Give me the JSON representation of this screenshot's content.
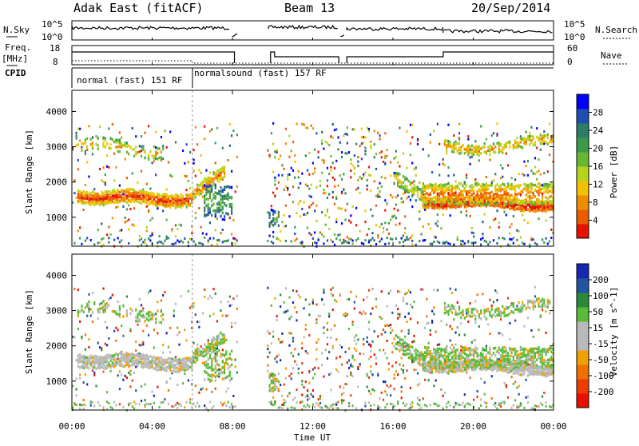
{
  "header": {
    "station": "Adak East (fitACF)",
    "beam": "Beam 13",
    "date": "20/Sep/2014"
  },
  "noise_panel": {
    "left_label": "N.Sky",
    "right_label": "N.Search",
    "left_ticks": [
      "10^5",
      "10^0"
    ],
    "right_ticks": [
      "10^5",
      "10^0"
    ]
  },
  "freq_panel": {
    "left_label": "Freq.",
    "left_unit": "[MHz]",
    "right_label": "Nave",
    "left_ticks": [
      "18",
      "8"
    ],
    "right_ticks": [
      "60",
      "0"
    ]
  },
  "cpid_panel": {
    "label": "CPID",
    "modes": [
      {
        "name": "normal (fast) 151 RF",
        "start_hour": 0,
        "end_hour": 6
      },
      {
        "name": "normalsound (fast) 157 RF",
        "start_hour": 6,
        "end_hour": 24
      }
    ]
  },
  "x_axis": {
    "label": "Time UT",
    "ticks": [
      "00:00",
      "04:00",
      "08:00",
      "12:00",
      "16:00",
      "20:00",
      "00:00"
    ],
    "range_hours": [
      0,
      24
    ]
  },
  "chart_data": [
    {
      "type": "heatmap",
      "title": "",
      "xlabel": "Time UT",
      "ylabel": "Slant Range [km]",
      "x_range_hours": [
        0,
        24
      ],
      "ylim": [
        180,
        4600
      ],
      "y_ticks": [
        1000,
        2000,
        3000,
        4000
      ],
      "colorbar_label": "Power [dB]",
      "colorbar_ticks": [
        4,
        8,
        12,
        16,
        20,
        24,
        28
      ],
      "colorbar_range": [
        0,
        32
      ],
      "colors": [
        "#0000ff",
        "#1f4fb0",
        "#2e7d66",
        "#3b9a4a",
        "#66b832",
        "#b5d31a",
        "#f2c200",
        "#f08c00",
        "#eb5b00",
        "#e81000"
      ]
    },
    {
      "type": "heatmap",
      "title": "",
      "xlabel": "Time UT",
      "ylabel": "Slant Range [km]",
      "x_range_hours": [
        0,
        24
      ],
      "ylim": [
        180,
        4600
      ],
      "y_ticks": [
        1000,
        2000,
        3000,
        4000
      ],
      "colorbar_label": "Velocity [m s^-1]",
      "colorbar_ticks": [
        200,
        100,
        50,
        15,
        -15,
        -50,
        -100,
        -200
      ],
      "colorbar_range": [
        -250,
        250
      ],
      "colors": [
        "#1428b4",
        "#2255a0",
        "#2a8a3a",
        "#58bb3a",
        "#b9b9b9",
        "#b9b9b9",
        "#f0a000",
        "#f07000",
        "#ee3c00",
        "#e81000"
      ]
    }
  ]
}
